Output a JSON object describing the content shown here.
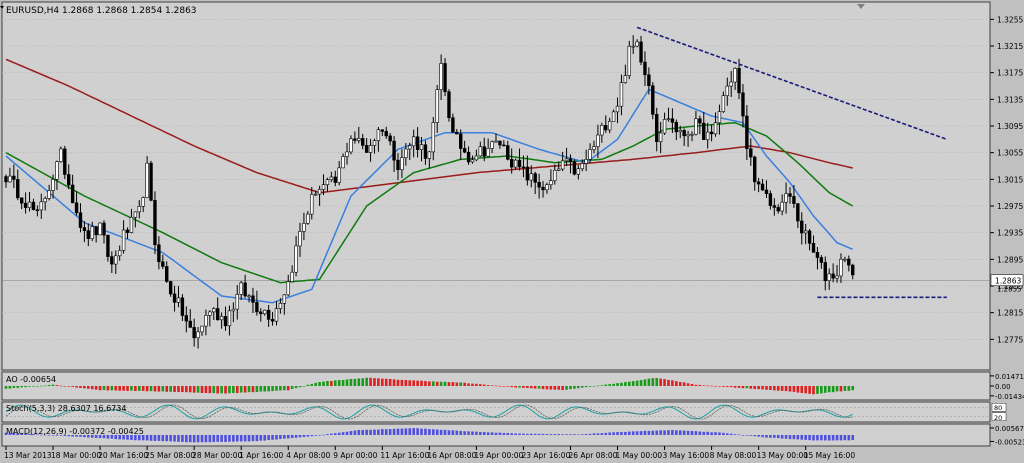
{
  "chart_data": [
    {
      "type": "candlestick",
      "header": "EURUSD,H4  1.2868 1.2868 1.2854 1.2863",
      "y_ticks": [
        "1.3255",
        "1.3215",
        "1.3175",
        "1.3135",
        "1.3095",
        "1.3055",
        "1.3015",
        "1.2975",
        "1.2935",
        "1.2895",
        "1.2855",
        "1.2815",
        "1.2775"
      ],
      "ylim": [
        1.2735,
        1.3275
      ],
      "current_price": "1.2863",
      "current_price_secondary": "1.2855",
      "x_ticks": [
        "13 Mar 2013",
        "18 Mar 00:00",
        "20 Mar 16:00",
        "25 Mar 08:00",
        "28 Mar 00:00",
        "1 Apr 16:00",
        "4 Apr 08:00",
        "9 Apr 00:00",
        "11 Apr 16:00",
        "16 Apr 08:00",
        "19 Apr 00:00",
        "23 Apr 16:00",
        "26 Apr 08:00",
        "1 May 00:00",
        "3 May 16:00",
        "8 May 08:00",
        "13 May 00:00",
        "15 May 16:00"
      ],
      "price_anchors": [
        [
          0,
          1.302
        ],
        [
          8,
          1.296
        ],
        [
          14,
          1.305
        ],
        [
          20,
          1.293
        ],
        [
          24,
          1.294
        ],
        [
          27,
          1.2885
        ],
        [
          30,
          1.293
        ],
        [
          34,
          1.2965
        ],
        [
          36,
          1.303
        ],
        [
          38,
          1.292
        ],
        [
          41,
          1.286
        ],
        [
          45,
          1.2815
        ],
        [
          48,
          1.2775
        ],
        [
          52,
          1.282
        ],
        [
          56,
          1.2805
        ],
        [
          60,
          1.285
        ],
        [
          64,
          1.2825
        ],
        [
          68,
          1.281
        ],
        [
          72,
          1.286
        ],
        [
          75,
          1.2935
        ],
        [
          79,
          1.3
        ],
        [
          84,
          1.301
        ],
        [
          88,
          1.308
        ],
        [
          92,
          1.306
        ],
        [
          96,
          1.3095
        ],
        [
          100,
          1.304
        ],
        [
          104,
          1.3075
        ],
        [
          108,
          1.305
        ],
        [
          111,
          1.3185
        ],
        [
          114,
          1.308
        ],
        [
          118,
          1.305
        ],
        [
          122,
          1.306
        ],
        [
          126,
          1.307
        ],
        [
          130,
          1.3035
        ],
        [
          134,
          1.3015
        ],
        [
          138,
          1.3
        ],
        [
          142,
          1.304
        ],
        [
          146,
          1.3025
        ],
        [
          150,
          1.3065
        ],
        [
          153,
          1.31
        ],
        [
          156,
          1.313
        ],
        [
          159,
          1.3205
        ],
        [
          161,
          1.322
        ],
        [
          164,
          1.316
        ],
        [
          166,
          1.308
        ],
        [
          169,
          1.311
        ],
        [
          172,
          1.308
        ],
        [
          176,
          1.3095
        ],
        [
          180,
          1.3075
        ],
        [
          183,
          1.314
        ],
        [
          186,
          1.318
        ],
        [
          189,
          1.3065
        ],
        [
          192,
          1.3
        ],
        [
          196,
          1.297
        ],
        [
          200,
          1.299
        ],
        [
          203,
          1.294
        ],
        [
          206,
          1.2905
        ],
        [
          209,
          1.287
        ],
        [
          212,
          1.2875
        ],
        [
          214,
          1.2905
        ],
        [
          216,
          1.2863
        ]
      ],
      "ma_fast": [
        [
          0,
          1.305
        ],
        [
          20,
          1.295
        ],
        [
          40,
          1.2905
        ],
        [
          55,
          1.284
        ],
        [
          68,
          1.283
        ],
        [
          78,
          1.285
        ],
        [
          88,
          1.299
        ],
        [
          100,
          1.306
        ],
        [
          112,
          1.3085
        ],
        [
          124,
          1.3085
        ],
        [
          136,
          1.306
        ],
        [
          148,
          1.304
        ],
        [
          156,
          1.3075
        ],
        [
          164,
          1.315
        ],
        [
          172,
          1.313
        ],
        [
          180,
          1.311
        ],
        [
          188,
          1.31
        ],
        [
          194,
          1.305
        ],
        [
          200,
          1.301
        ],
        [
          206,
          1.296
        ],
        [
          212,
          1.292
        ],
        [
          216,
          1.291
        ]
      ],
      "ma_medium": [
        [
          0,
          1.3055
        ],
        [
          20,
          1.299
        ],
        [
          40,
          1.2935
        ],
        [
          55,
          1.289
        ],
        [
          70,
          1.286
        ],
        [
          80,
          1.2865
        ],
        [
          92,
          1.2975
        ],
        [
          104,
          1.3025
        ],
        [
          116,
          1.3045
        ],
        [
          128,
          1.305
        ],
        [
          140,
          1.304
        ],
        [
          152,
          1.3045
        ],
        [
          160,
          1.3065
        ],
        [
          168,
          1.309
        ],
        [
          176,
          1.3095
        ],
        [
          186,
          1.31
        ],
        [
          194,
          1.308
        ],
        [
          202,
          1.304
        ],
        [
          210,
          1.2995
        ],
        [
          216,
          1.2975
        ]
      ],
      "ma_slow": [
        [
          0,
          1.3195
        ],
        [
          16,
          1.3155
        ],
        [
          32,
          1.311
        ],
        [
          48,
          1.3065
        ],
        [
          64,
          1.3025
        ],
        [
          80,
          1.2995
        ],
        [
          100,
          1.301
        ],
        [
          120,
          1.3025
        ],
        [
          140,
          1.3035
        ],
        [
          160,
          1.3045
        ],
        [
          176,
          1.3055
        ],
        [
          190,
          1.3065
        ],
        [
          200,
          1.3055
        ],
        [
          210,
          1.304
        ],
        [
          216,
          1.3032
        ]
      ],
      "trendline_upper": [
        [
          161,
          1.3243
        ],
        [
          240,
          1.3075
        ]
      ],
      "trendline_lower": [
        [
          207,
          1.2838
        ],
        [
          240,
          1.2838
        ]
      ],
      "colors": {
        "bull": "#ffffff",
        "bear": "#000000",
        "ma_fast": "#3a7fe0",
        "ma_medium": "#107a10",
        "ma_slow": "#9a1b1b",
        "trend": "#1a1a7a",
        "grid": "#a8a8a8",
        "plot_bg": "#d0d0d0"
      }
    },
    {
      "type": "histogram",
      "label": "AO -0.00654",
      "y_ticks": [
        "0.01471",
        "0.00",
        "-0.01434"
      ],
      "ylim": [
        -0.016,
        0.016
      ],
      "anchors": [
        [
          0,
          -0.004
        ],
        [
          12,
          0.002
        ],
        [
          24,
          -0.006
        ],
        [
          40,
          -0.008
        ],
        [
          56,
          -0.011
        ],
        [
          72,
          -0.006
        ],
        [
          80,
          0.006
        ],
        [
          92,
          0.012
        ],
        [
          104,
          0.008
        ],
        [
          116,
          0.005
        ],
        [
          130,
          -0.002
        ],
        [
          142,
          -0.006
        ],
        [
          156,
          0.004
        ],
        [
          166,
          0.012
        ],
        [
          176,
          0.002
        ],
        [
          188,
          -0.003
        ],
        [
          198,
          -0.007
        ],
        [
          206,
          -0.012
        ],
        [
          212,
          -0.008
        ],
        [
          216,
          -0.0065
        ]
      ]
    },
    {
      "type": "line",
      "label": "Stoch(5,3,3) 28.6307 16.6734",
      "y_ticks": [
        "80",
        "20"
      ],
      "ylim": [
        0,
        100
      ]
    },
    {
      "type": "histogram",
      "label": "MACD(12,26,9) -0.00372 -0.00425",
      "y_ticks": [
        "0.00567",
        "-0.00523"
      ],
      "ylim": [
        -0.0065,
        0.0065
      ],
      "anchors": [
        [
          0,
          0.002
        ],
        [
          16,
          -0.001
        ],
        [
          32,
          -0.004
        ],
        [
          48,
          -0.006
        ],
        [
          64,
          -0.005
        ],
        [
          78,
          -0.001
        ],
        [
          90,
          0.004
        ],
        [
          104,
          0.0056
        ],
        [
          118,
          0.003
        ],
        [
          132,
          0.001
        ],
        [
          146,
          0.0005
        ],
        [
          160,
          0.003
        ],
        [
          170,
          0.004
        ],
        [
          182,
          0.002
        ],
        [
          194,
          -0.002
        ],
        [
          206,
          -0.0045
        ],
        [
          216,
          -0.0042
        ]
      ]
    }
  ]
}
